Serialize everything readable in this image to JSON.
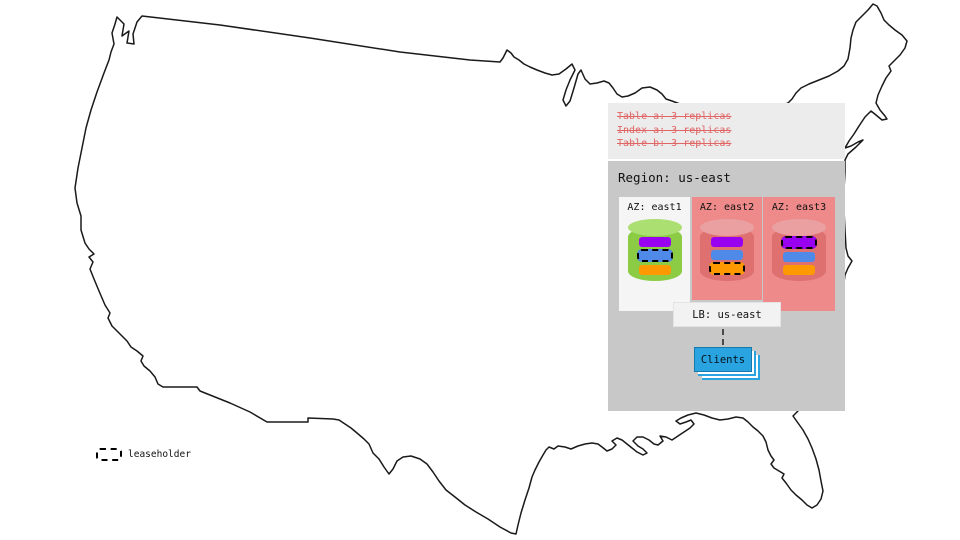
{
  "annotation_box": {
    "lines": [
      {
        "text": "Table a: 3 replicas"
      },
      {
        "text": "Index a: 3 replicas"
      },
      {
        "text": "Table b: 3 replicas"
      }
    ],
    "strikethrough": true
  },
  "region": {
    "label": "Region: us-east",
    "azs": [
      {
        "label": "AZ: east1",
        "status": "normal",
        "cylinder": "green-database-cylinder",
        "bars": [
          {
            "color": "bar-purple",
            "leaseholder": false
          },
          {
            "color": "bar-blue",
            "leaseholder": true
          },
          {
            "color": "bar-orange",
            "leaseholder": false
          }
        ]
      },
      {
        "label": "AZ: east2",
        "status": "down",
        "cylinder": "red-database-cylinder",
        "bars": [
          {
            "color": "bar-purple",
            "leaseholder": false
          },
          {
            "color": "bar-blue",
            "leaseholder": false
          },
          {
            "color": "bar-orange",
            "leaseholder": true
          }
        ]
      },
      {
        "label": "AZ: east3",
        "status": "down",
        "cylinder": "red-database-cylinder",
        "bars": [
          {
            "color": "bar-purple",
            "leaseholder": true
          },
          {
            "color": "bar-blue",
            "leaseholder": false
          },
          {
            "color": "bar-orange",
            "leaseholder": false
          }
        ]
      }
    ]
  },
  "lb": {
    "label": "LB: us-east"
  },
  "clients": {
    "label": "Clients"
  },
  "legend": {
    "label": "leaseholder"
  },
  "colors": {
    "map-stroke": "#1a1a1a",
    "annotation-bg": "#ececec",
    "annotation-red": "#e06565",
    "region-bg": "#c8c8c8",
    "az-normal-bg": "#f5f5f5",
    "az-down-bg": "#ee8a8a",
    "cyl-green-body": "#8ccc44",
    "cyl-green-top": "#abdf72",
    "cyl-red-body": "#df7070",
    "cyl-red-top": "#eaa0a0",
    "bar-purple": "#9a00f0",
    "bar-blue": "#4f8ae8",
    "bar-orange": "#ff9900",
    "clients-blue": "#2aa4e0"
  }
}
